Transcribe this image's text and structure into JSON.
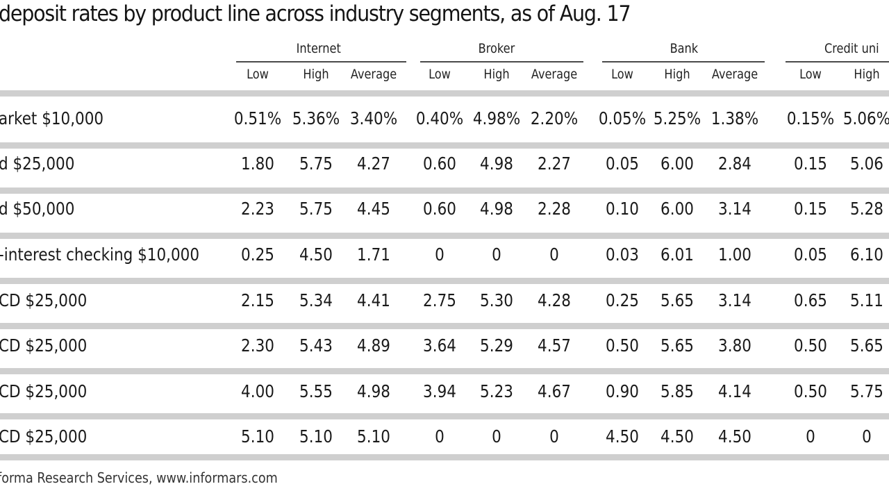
{
  "chart_data": {
    "type": "table",
    "title": "deposit rates by product line across industry segments, as of Aug. 17",
    "groups": [
      "Internet",
      "Broker",
      "Bank",
      "Credit uni"
    ],
    "group_subcolumns": [
      [
        "Low",
        "High",
        "Average"
      ],
      [
        "Low",
        "High",
        "Average"
      ],
      [
        "Low",
        "High",
        "Average"
      ],
      [
        "Low",
        "High"
      ]
    ],
    "rows": [
      {
        "label": "arket $10,000",
        "values": [
          "0.51%",
          "5.36%",
          "3.40%",
          "0.40%",
          "4.98%",
          "2.20%",
          "0.05%",
          "5.25%",
          "1.38%",
          "0.15%",
          "5.06%"
        ]
      },
      {
        "label": "d $25,000",
        "values": [
          "1.80",
          "5.75",
          "4.27",
          "0.60",
          "4.98",
          "2.27",
          "0.05",
          "6.00",
          "2.84",
          "0.15",
          "5.06"
        ]
      },
      {
        "label": "d $50,000",
        "values": [
          "2.23",
          "5.75",
          "4.45",
          "0.60",
          "4.98",
          "2.28",
          "0.10",
          "6.00",
          "3.14",
          "0.15",
          "5.28"
        ]
      },
      {
        "label": "-interest checking $10,000",
        "values": [
          "0.25",
          "4.50",
          "1.71",
          "0",
          "0",
          "0",
          "0.03",
          "6.01",
          "1.00",
          "0.05",
          "6.10"
        ]
      },
      {
        "label": "CD $25,000",
        "values": [
          "2.15",
          "5.34",
          "4.41",
          "2.75",
          "5.30",
          "4.28",
          "0.25",
          "5.65",
          "3.14",
          "0.65",
          "5.11"
        ]
      },
      {
        "label": "CD $25,000",
        "values": [
          "2.30",
          "5.43",
          "4.89",
          "3.64",
          "5.29",
          "4.57",
          "0.50",
          "5.65",
          "3.80",
          "0.50",
          "5.65"
        ]
      },
      {
        "label": "CD $25,000",
        "values": [
          "4.00",
          "5.55",
          "4.98",
          "3.94",
          "5.23",
          "4.67",
          "0.90",
          "5.85",
          "4.14",
          "0.50",
          "5.75"
        ]
      },
      {
        "label": "CD $25,000",
        "values": [
          "5.10",
          "5.10",
          "5.10",
          "0",
          "0",
          "0",
          "4.50",
          "4.50",
          "4.50",
          "0",
          "0"
        ]
      }
    ],
    "source": "forma Research Services, www.informars.com"
  },
  "colors": {
    "band": "#cfcfcf",
    "text": "#1a1a1a",
    "rule": "#4a4a4a"
  }
}
